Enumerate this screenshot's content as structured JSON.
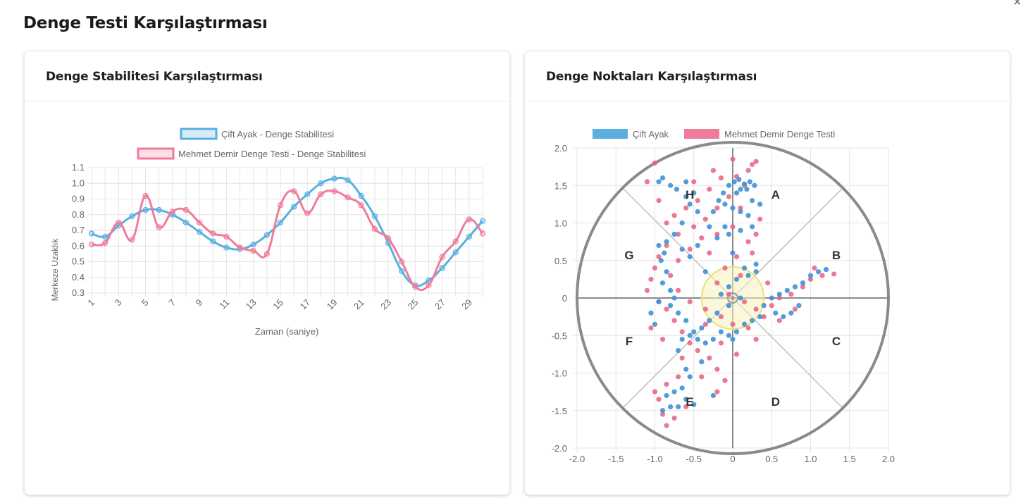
{
  "page": {
    "title": "Denge Testi Karşılaştırması",
    "close_glyph": "×"
  },
  "left_card": {
    "title": "Denge Stabilitesi Karşılaştırması"
  },
  "right_card": {
    "title": "Denge Noktaları Karşılaştırması"
  },
  "colors": {
    "blue": "#5aafe0",
    "blue_fill": "rgba(90,175,224,0.25)",
    "pink": "#ef7d9a",
    "pink_fill": "rgba(239,125,154,0.25)",
    "grid": "#e4e4e4",
    "circle": "#8a8a8a",
    "zone": "#e8e27a"
  },
  "chart_data": [
    {
      "type": "line",
      "title": "",
      "xlabel": "Zaman (saniye)",
      "ylabel": "Merkeze Uzaklık",
      "ylim": [
        0.3,
        1.1
      ],
      "yticks": [
        "1.1",
        "1.0",
        "0.9",
        "0.8",
        "0.7",
        "0.6",
        "0.5",
        "0.4",
        "0.3"
      ],
      "x": [
        1,
        2,
        3,
        4,
        5,
        6,
        7,
        8,
        9,
        10,
        11,
        12,
        13,
        14,
        15,
        16,
        17,
        18,
        19,
        20,
        21,
        22,
        23,
        24,
        25,
        26,
        27,
        28,
        29,
        30
      ],
      "xtick_labels": [
        "1",
        "3",
        "5",
        "7",
        "9",
        "11",
        "13",
        "15",
        "17",
        "19",
        "21",
        "23",
        "25",
        "27",
        "29"
      ],
      "legend_position": "top",
      "series": [
        {
          "name": "Çift Ayak - Denge Stabilitesi",
          "values": [
            0.68,
            0.66,
            0.73,
            0.79,
            0.83,
            0.83,
            0.8,
            0.75,
            0.69,
            0.63,
            0.59,
            0.58,
            0.61,
            0.67,
            0.75,
            0.85,
            0.93,
            1.0,
            1.03,
            1.02,
            0.92,
            0.79,
            0.62,
            0.44,
            0.35,
            0.38,
            0.46,
            0.56,
            0.66,
            0.76
          ]
        },
        {
          "name": "Mehmet Demir Denge Testi - Denge Stabilitesi",
          "values": [
            0.61,
            0.62,
            0.75,
            0.64,
            0.92,
            0.72,
            0.82,
            0.83,
            0.75,
            0.68,
            0.66,
            0.59,
            0.57,
            0.55,
            0.86,
            0.95,
            0.81,
            0.93,
            0.95,
            0.91,
            0.86,
            0.71,
            0.65,
            0.5,
            0.34,
            0.35,
            0.53,
            0.63,
            0.77,
            0.68
          ]
        }
      ]
    },
    {
      "type": "scatter",
      "title": "",
      "xlim": [
        -2.0,
        2.0
      ],
      "ylim": [
        -2.0,
        2.0
      ],
      "xticks": [
        "-2.0",
        "-1.5",
        "-1.0",
        "-0.5",
        "0",
        "0.5",
        "1.0",
        "1.5",
        "2.0"
      ],
      "yticks": [
        "2.0",
        "1.5",
        "1.0",
        "0.5",
        "0",
        "-0.5",
        "-1.0",
        "-1.5",
        "-2.0"
      ],
      "legend_position": "top",
      "zones": [
        "A",
        "B",
        "C",
        "D",
        "E",
        "F",
        "G",
        "H"
      ],
      "series": [
        {
          "name": "Çift Ayak",
          "points": [
            [
              0.02,
              1.55
            ],
            [
              0.08,
              1.58
            ],
            [
              0.15,
              1.52
            ],
            [
              0.22,
              1.55
            ],
            [
              0.28,
              1.5
            ],
            [
              0.18,
              1.45
            ],
            [
              0.05,
              1.4
            ],
            [
              -0.05,
              1.5
            ],
            [
              -0.12,
              1.4
            ],
            [
              -0.18,
              1.3
            ],
            [
              -0.1,
              1.25
            ],
            [
              0.0,
              1.2
            ],
            [
              0.1,
              1.15
            ],
            [
              0.2,
              1.1
            ],
            [
              0.25,
              0.95
            ],
            [
              0.1,
              0.9
            ],
            [
              -0.05,
              0.85
            ],
            [
              -0.2,
              0.8
            ],
            [
              -0.3,
              0.95
            ],
            [
              -0.45,
              1.15
            ],
            [
              -0.55,
              1.25
            ],
            [
              -0.5,
              1.4
            ],
            [
              -0.6,
              1.55
            ],
            [
              -0.72,
              1.45
            ],
            [
              -0.8,
              1.5
            ],
            [
              -0.95,
              1.55
            ],
            [
              -0.9,
              1.6
            ],
            [
              -0.6,
              1.35
            ],
            [
              -0.65,
              1.0
            ],
            [
              -0.75,
              0.85
            ],
            [
              -0.85,
              0.75
            ],
            [
              -0.95,
              0.7
            ],
            [
              -0.88,
              0.6
            ],
            [
              -0.92,
              0.5
            ],
            [
              -0.85,
              0.35
            ],
            [
              -0.9,
              0.2
            ],
            [
              -0.8,
              0.1
            ],
            [
              -0.75,
              0.0
            ],
            [
              -0.8,
              -0.1
            ],
            [
              -0.7,
              -0.2
            ],
            [
              -0.6,
              -0.3
            ],
            [
              -0.5,
              -0.45
            ],
            [
              -0.45,
              -0.55
            ],
            [
              -0.35,
              -0.6
            ],
            [
              -0.25,
              -0.55
            ],
            [
              -0.15,
              -0.45
            ],
            [
              -0.05,
              -0.5
            ],
            [
              0.05,
              -0.45
            ],
            [
              0.15,
              -0.35
            ],
            [
              0.25,
              -0.3
            ],
            [
              0.35,
              -0.25
            ],
            [
              0.4,
              -0.1
            ],
            [
              0.5,
              0.0
            ],
            [
              0.6,
              0.05
            ],
            [
              0.7,
              0.1
            ],
            [
              0.8,
              0.15
            ],
            [
              0.9,
              0.2
            ],
            [
              1.0,
              0.3
            ],
            [
              1.1,
              0.35
            ],
            [
              1.2,
              0.38
            ],
            [
              0.85,
              -0.1
            ],
            [
              0.75,
              -0.2
            ],
            [
              0.65,
              -0.25
            ],
            [
              0.55,
              -0.2
            ],
            [
              0.2,
              0.3
            ],
            [
              0.3,
              0.35
            ],
            [
              0.15,
              0.4
            ],
            [
              0.05,
              0.25
            ],
            [
              -0.05,
              0.15
            ],
            [
              -0.15,
              0.05
            ],
            [
              0.1,
              0.0
            ],
            [
              -0.05,
              -0.1
            ],
            [
              -0.2,
              -0.2
            ],
            [
              -0.3,
              -0.3
            ],
            [
              -0.4,
              -0.4
            ],
            [
              -0.55,
              -0.5
            ],
            [
              -0.65,
              -0.55
            ],
            [
              -0.7,
              -0.7
            ],
            [
              -0.6,
              -0.95
            ],
            [
              -0.55,
              -1.05
            ],
            [
              -0.65,
              -1.2
            ],
            [
              -0.75,
              -1.25
            ],
            [
              -0.85,
              -1.3
            ],
            [
              -0.8,
              -1.45
            ],
            [
              -0.7,
              -1.45
            ],
            [
              -0.6,
              -1.35
            ],
            [
              -0.5,
              -1.42
            ],
            [
              -0.9,
              -1.5
            ],
            [
              -1.0,
              -0.35
            ],
            [
              -1.05,
              -0.2
            ],
            [
              -0.95,
              -0.05
            ],
            [
              -0.4,
              -0.85
            ],
            [
              -0.25,
              -1.3
            ],
            [
              0.0,
              -0.55
            ],
            [
              0.35,
              1.25
            ],
            [
              -0.35,
              0.35
            ],
            [
              -0.55,
              0.55
            ],
            [
              -0.65,
              0.65
            ],
            [
              -0.45,
              0.7
            ],
            [
              0.3,
              0.45
            ],
            [
              0.0,
              0.6
            ],
            [
              -0.1,
              0.95
            ],
            [
              0.25,
              1.3
            ],
            [
              -0.25,
              1.15
            ],
            [
              0.1,
              1.45
            ]
          ]
        },
        {
          "name": "Mehmet Demir Denge Testi",
          "points": [
            [
              0.25,
              1.78
            ],
            [
              0.3,
              1.82
            ],
            [
              0.2,
              1.7
            ],
            [
              0.05,
              1.62
            ],
            [
              0.15,
              1.5
            ],
            [
              -0.05,
              1.35
            ],
            [
              -0.2,
              1.2
            ],
            [
              -0.35,
              1.05
            ],
            [
              -0.5,
              0.95
            ],
            [
              -0.7,
              0.85
            ],
            [
              -0.85,
              0.7
            ],
            [
              -0.95,
              0.55
            ],
            [
              -1.0,
              0.4
            ],
            [
              -1.05,
              0.25
            ],
            [
              -1.1,
              0.1
            ],
            [
              -0.95,
              -0.05
            ],
            [
              -0.85,
              -0.15
            ],
            [
              -0.75,
              -0.3
            ],
            [
              -0.65,
              -0.45
            ],
            [
              -0.55,
              -0.6
            ],
            [
              -0.45,
              -0.7
            ],
            [
              -0.3,
              -0.8
            ],
            [
              -0.2,
              -0.95
            ],
            [
              -0.1,
              -1.1
            ],
            [
              -0.2,
              -1.25
            ],
            [
              -0.7,
              -1.05
            ],
            [
              -0.85,
              -1.15
            ],
            [
              -0.95,
              -1.35
            ],
            [
              -0.9,
              -1.55
            ],
            [
              -0.85,
              -1.7
            ],
            [
              -0.75,
              -1.6
            ],
            [
              -0.6,
              -1.45
            ],
            [
              -1.0,
              -1.25
            ],
            [
              -0.3,
              1.45
            ],
            [
              -0.45,
              1.3
            ],
            [
              -0.6,
              1.2
            ],
            [
              -0.75,
              1.1
            ],
            [
              -0.85,
              1.0
            ],
            [
              -1.0,
              1.8
            ],
            [
              -1.1,
              1.55
            ],
            [
              -0.95,
              1.3
            ],
            [
              0.35,
              1.05
            ],
            [
              0.3,
              0.85
            ],
            [
              0.2,
              0.75
            ],
            [
              0.05,
              0.55
            ],
            [
              -0.1,
              0.4
            ],
            [
              -0.2,
              0.2
            ],
            [
              -0.05,
              0.05
            ],
            [
              0.15,
              -0.05
            ],
            [
              0.3,
              -0.15
            ],
            [
              0.4,
              -0.25
            ],
            [
              0.5,
              -0.1
            ],
            [
              0.6,
              0.0
            ],
            [
              0.75,
              0.05
            ],
            [
              0.9,
              0.15
            ],
            [
              1.0,
              0.25
            ],
            [
              1.15,
              0.3
            ],
            [
              1.3,
              0.32
            ],
            [
              1.05,
              0.4
            ],
            [
              0.8,
              -0.15
            ],
            [
              0.6,
              -0.3
            ],
            [
              0.2,
              -0.4
            ],
            [
              0.0,
              -0.35
            ],
            [
              -0.15,
              -0.25
            ],
            [
              -0.35,
              -0.15
            ],
            [
              -0.55,
              -0.05
            ],
            [
              -0.7,
              0.1
            ],
            [
              -0.8,
              0.3
            ],
            [
              -0.7,
              0.5
            ],
            [
              -0.55,
              0.65
            ],
            [
              -0.4,
              0.8
            ],
            [
              -0.2,
              0.85
            ],
            [
              0.0,
              0.95
            ],
            [
              0.1,
              1.2
            ],
            [
              -0.15,
              1.6
            ],
            [
              0.0,
              1.85
            ],
            [
              -0.25,
              1.7
            ],
            [
              -1.05,
              -0.4
            ],
            [
              -0.9,
              -0.55
            ],
            [
              -0.4,
              -1.05
            ],
            [
              -0.35,
              -0.35
            ],
            [
              0.1,
              0.3
            ],
            [
              0.45,
              0.2
            ],
            [
              -0.5,
              1.55
            ],
            [
              -0.3,
              0.6
            ],
            [
              0.25,
              0.6
            ],
            [
              -0.65,
              -0.8
            ],
            [
              -0.15,
              -0.6
            ],
            [
              0.05,
              -0.75
            ],
            [
              0.3,
              -0.55
            ]
          ]
        }
      ]
    }
  ]
}
